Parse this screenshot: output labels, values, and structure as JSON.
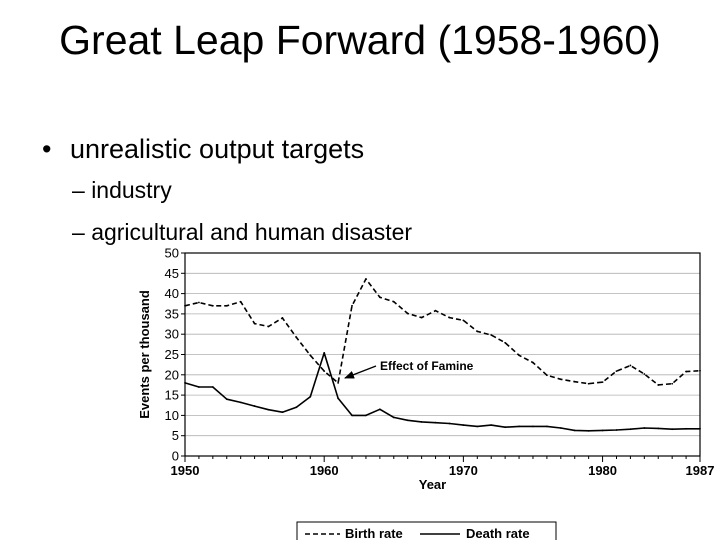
{
  "slide": {
    "title": "Great Leap Forward (1958-1960)",
    "bullet": "unrealistic output targets",
    "sub_bullets": [
      "industry",
      "agricultural and human disaster"
    ]
  },
  "chart_data": {
    "type": "line",
    "title": "",
    "xlabel": "Year",
    "ylabel": "Events per thousand",
    "xlim": [
      1950,
      1987
    ],
    "ylim": [
      0,
      50
    ],
    "x_ticks": [
      1950,
      1960,
      1970,
      1980,
      1987
    ],
    "y_ticks": [
      0,
      5,
      10,
      15,
      20,
      25,
      30,
      35,
      40,
      45,
      50
    ],
    "grid": "horizontal",
    "legend_position": "bottom",
    "annotation": "Effect of Famine",
    "series": [
      {
        "name": "Birth rate",
        "style": "dashed",
        "x": [
          1950,
          1951,
          1952,
          1953,
          1954,
          1955,
          1956,
          1957,
          1958,
          1959,
          1960,
          1961,
          1962,
          1963,
          1964,
          1965,
          1966,
          1967,
          1968,
          1969,
          1970,
          1971,
          1972,
          1973,
          1974,
          1975,
          1976,
          1977,
          1978,
          1979,
          1980,
          1981,
          1982,
          1983,
          1984,
          1985,
          1986,
          1987
        ],
        "values": [
          37.0,
          37.8,
          37.0,
          37.0,
          38.0,
          32.6,
          31.9,
          34.0,
          29.2,
          24.8,
          20.9,
          18.0,
          37.0,
          43.6,
          39.1,
          38.0,
          35.1,
          34.1,
          35.8,
          34.1,
          33.4,
          30.7,
          29.8,
          27.9,
          24.8,
          23.0,
          19.9,
          18.9,
          18.3,
          17.8,
          18.2,
          20.9,
          22.3,
          20.2,
          17.5,
          17.8,
          20.8,
          21.0
        ]
      },
      {
        "name": "Death rate",
        "style": "solid",
        "x": [
          1950,
          1951,
          1952,
          1953,
          1954,
          1955,
          1956,
          1957,
          1958,
          1959,
          1960,
          1961,
          1962,
          1963,
          1964,
          1965,
          1966,
          1967,
          1968,
          1969,
          1970,
          1971,
          1972,
          1973,
          1974,
          1975,
          1976,
          1977,
          1978,
          1979,
          1980,
          1981,
          1982,
          1983,
          1984,
          1985,
          1986,
          1987
        ],
        "values": [
          18.0,
          17.0,
          17.0,
          14.0,
          13.2,
          12.3,
          11.4,
          10.8,
          12.0,
          14.6,
          25.4,
          14.2,
          10.0,
          10.0,
          11.5,
          9.5,
          8.8,
          8.4,
          8.2,
          8.0,
          7.6,
          7.3,
          7.6,
          7.1,
          7.3,
          7.3,
          7.3,
          6.9,
          6.3,
          6.2,
          6.3,
          6.4,
          6.6,
          6.9,
          6.8,
          6.6,
          6.7,
          6.7
        ]
      }
    ]
  }
}
